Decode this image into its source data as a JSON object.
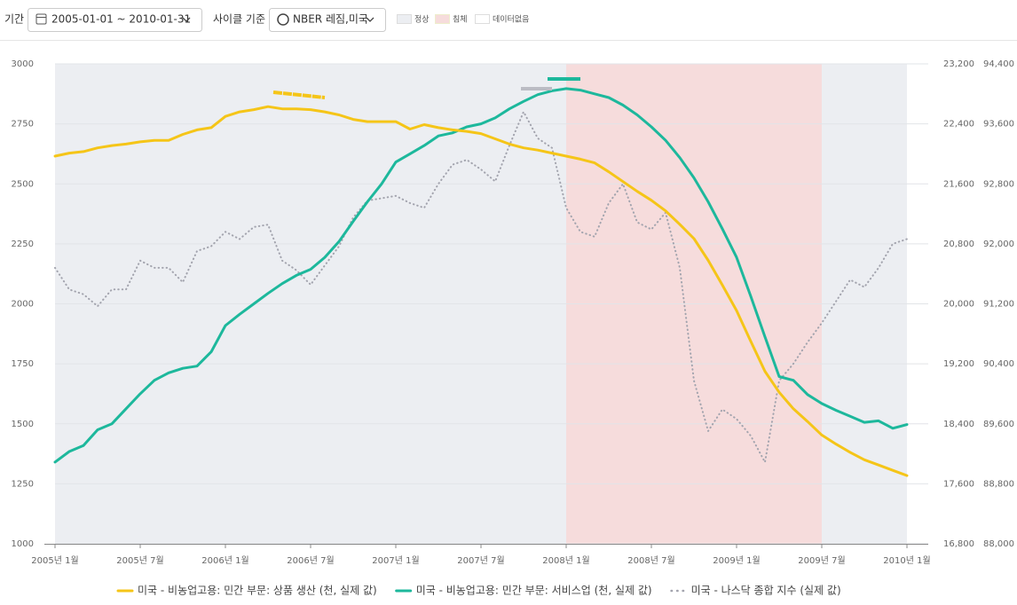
{
  "toolbar": {
    "period_label": "기간",
    "period_value": "2005-01-01 ~ 2010-01-31",
    "cycle_label": "사이클 기준",
    "cycle_value": "NBER 레짐,미국",
    "regime_legend": [
      "정상",
      "침체",
      "데이터없음"
    ]
  },
  "chart_data": {
    "type": "line",
    "x": [
      "2005-01",
      "2005-02",
      "2005-03",
      "2005-04",
      "2005-05",
      "2005-06",
      "2005-07",
      "2005-08",
      "2005-09",
      "2005-10",
      "2005-11",
      "2005-12",
      "2006-01",
      "2006-02",
      "2006-03",
      "2006-04",
      "2006-05",
      "2006-06",
      "2006-07",
      "2006-08",
      "2006-09",
      "2006-10",
      "2006-11",
      "2006-12",
      "2007-01",
      "2007-02",
      "2007-03",
      "2007-04",
      "2007-05",
      "2007-06",
      "2007-07",
      "2007-08",
      "2007-09",
      "2007-10",
      "2007-11",
      "2007-12",
      "2008-01",
      "2008-02",
      "2008-03",
      "2008-04",
      "2008-05",
      "2008-06",
      "2008-07",
      "2008-08",
      "2008-09",
      "2008-10",
      "2008-11",
      "2008-12",
      "2009-01",
      "2009-02",
      "2009-03",
      "2009-04",
      "2009-05",
      "2009-06",
      "2009-07",
      "2009-08",
      "2009-09",
      "2009-10",
      "2009-11",
      "2009-12",
      "2010-01"
    ],
    "xticks": [
      {
        "value": "2005-01",
        "label": "2005년 1월"
      },
      {
        "value": "2005-07",
        "label": "2005년 7월"
      },
      {
        "value": "2006-01",
        "label": "2006년 1월"
      },
      {
        "value": "2006-07",
        "label": "2006년 7월"
      },
      {
        "value": "2007-01",
        "label": "2007년 1월"
      },
      {
        "value": "2007-07",
        "label": "2007년 7월"
      },
      {
        "value": "2008-01",
        "label": "2008년 1월"
      },
      {
        "value": "2008-07",
        "label": "2008년 7월"
      },
      {
        "value": "2009-01",
        "label": "2009년 1월"
      },
      {
        "value": "2009-07",
        "label": "2009년 7월"
      },
      {
        "value": "2010-01",
        "label": "2010년 1월"
      }
    ],
    "ylim": [
      1000,
      3000
    ],
    "yticks": [
      1000,
      1250,
      1500,
      1750,
      2000,
      2250,
      2500,
      2750,
      3000
    ],
    "y2lim": [
      16800,
      23200
    ],
    "y2ticks": [
      {
        "value": 16800,
        "label": "16,800"
      },
      {
        "value": 17600,
        "label": "17,600"
      },
      {
        "value": 18400,
        "label": "18,400"
      },
      {
        "value": 19200,
        "label": "19,200"
      },
      {
        "value": 20000,
        "label": "20,000"
      },
      {
        "value": 20800,
        "label": "20,800"
      },
      {
        "value": 21600,
        "label": "21,600"
      },
      {
        "value": 22400,
        "label": "22,400"
      },
      {
        "value": 23200,
        "label": "23,200"
      }
    ],
    "y3lim": [
      88000,
      94400
    ],
    "y3ticks": [
      {
        "value": 88000,
        "label": "88,000"
      },
      {
        "value": 88800,
        "label": "88,800"
      },
      {
        "value": 89600,
        "label": "89,600"
      },
      {
        "value": 90400,
        "label": "90,400"
      },
      {
        "value": 91200,
        "label": "91,200"
      },
      {
        "value": 92000,
        "label": "92,000"
      },
      {
        "value": 92800,
        "label": "92,800"
      },
      {
        "value": 93600,
        "label": "93,600"
      },
      {
        "value": 94400,
        "label": "94,400"
      }
    ],
    "grid": true,
    "regimes": [
      {
        "start": "2005-01",
        "end": "2010-01",
        "color": "#eceef2"
      },
      {
        "start": "2008-01",
        "end": "2009-07",
        "color": "#f6dcdc"
      }
    ],
    "series": [
      {
        "name": "미국 - 비농업고용: 민간 부문: 상품 생산 (천, 실제 값)",
        "color": "#f5c518",
        "axis": "y2",
        "style": "solid",
        "values": [
          21970,
          22010,
          22030,
          22080,
          22110,
          22130,
          22160,
          22180,
          22180,
          22260,
          22320,
          22350,
          22500,
          22560,
          22590,
          22630,
          22600,
          22600,
          22590,
          22560,
          22520,
          22460,
          22430,
          22430,
          22430,
          22330,
          22390,
          22350,
          22320,
          22300,
          22270,
          22200,
          22130,
          22080,
          22050,
          22010,
          21970,
          21930,
          21880,
          21760,
          21630,
          21500,
          21380,
          21240,
          21060,
          20870,
          20580,
          20250,
          19910,
          19500,
          19100,
          18820,
          18600,
          18430,
          18250,
          18130,
          18020,
          17920,
          17850,
          17780,
          17710
        ]
      },
      {
        "name": "미국 - 비농업고용: 민간 부문: 서비스업 (천, 실제 값)",
        "color": "#1db89c",
        "axis": "y3",
        "style": "solid",
        "values": [
          89090,
          89230,
          89310,
          89520,
          89600,
          89800,
          90000,
          90180,
          90280,
          90340,
          90370,
          90560,
          90910,
          91060,
          91200,
          91340,
          91470,
          91580,
          91660,
          91820,
          92030,
          92300,
          92560,
          92800,
          93090,
          93200,
          93310,
          93440,
          93480,
          93560,
          93600,
          93680,
          93800,
          93900,
          93990,
          94040,
          94070,
          94050,
          94000,
          93950,
          93850,
          93720,
          93560,
          93380,
          93150,
          92880,
          92560,
          92200,
          91820,
          91300,
          90760,
          90230,
          90180,
          89990,
          89870,
          89780,
          89700,
          89620,
          89640,
          89540,
          89590
        ]
      },
      {
        "name": "미국 - 나스닥 종합 지수 (실제 값)",
        "color": "#a3a4ae",
        "axis": "y",
        "style": "dotted",
        "values": [
          2150,
          2060,
          2040,
          1990,
          2060,
          2060,
          2180,
          2150,
          2150,
          2090,
          2220,
          2240,
          2300,
          2270,
          2320,
          2330,
          2180,
          2140,
          2080,
          2160,
          2240,
          2360,
          2430,
          2440,
          2450,
          2420,
          2400,
          2500,
          2580,
          2600,
          2560,
          2510,
          2660,
          2800,
          2690,
          2650,
          2400,
          2300,
          2280,
          2420,
          2500,
          2340,
          2310,
          2380,
          2150,
          1680,
          1470,
          1560,
          1520,
          1450,
          1340,
          1680,
          1750,
          1840,
          1920,
          2010,
          2100,
          2070,
          2150,
          2250,
          2270
        ]
      }
    ]
  }
}
